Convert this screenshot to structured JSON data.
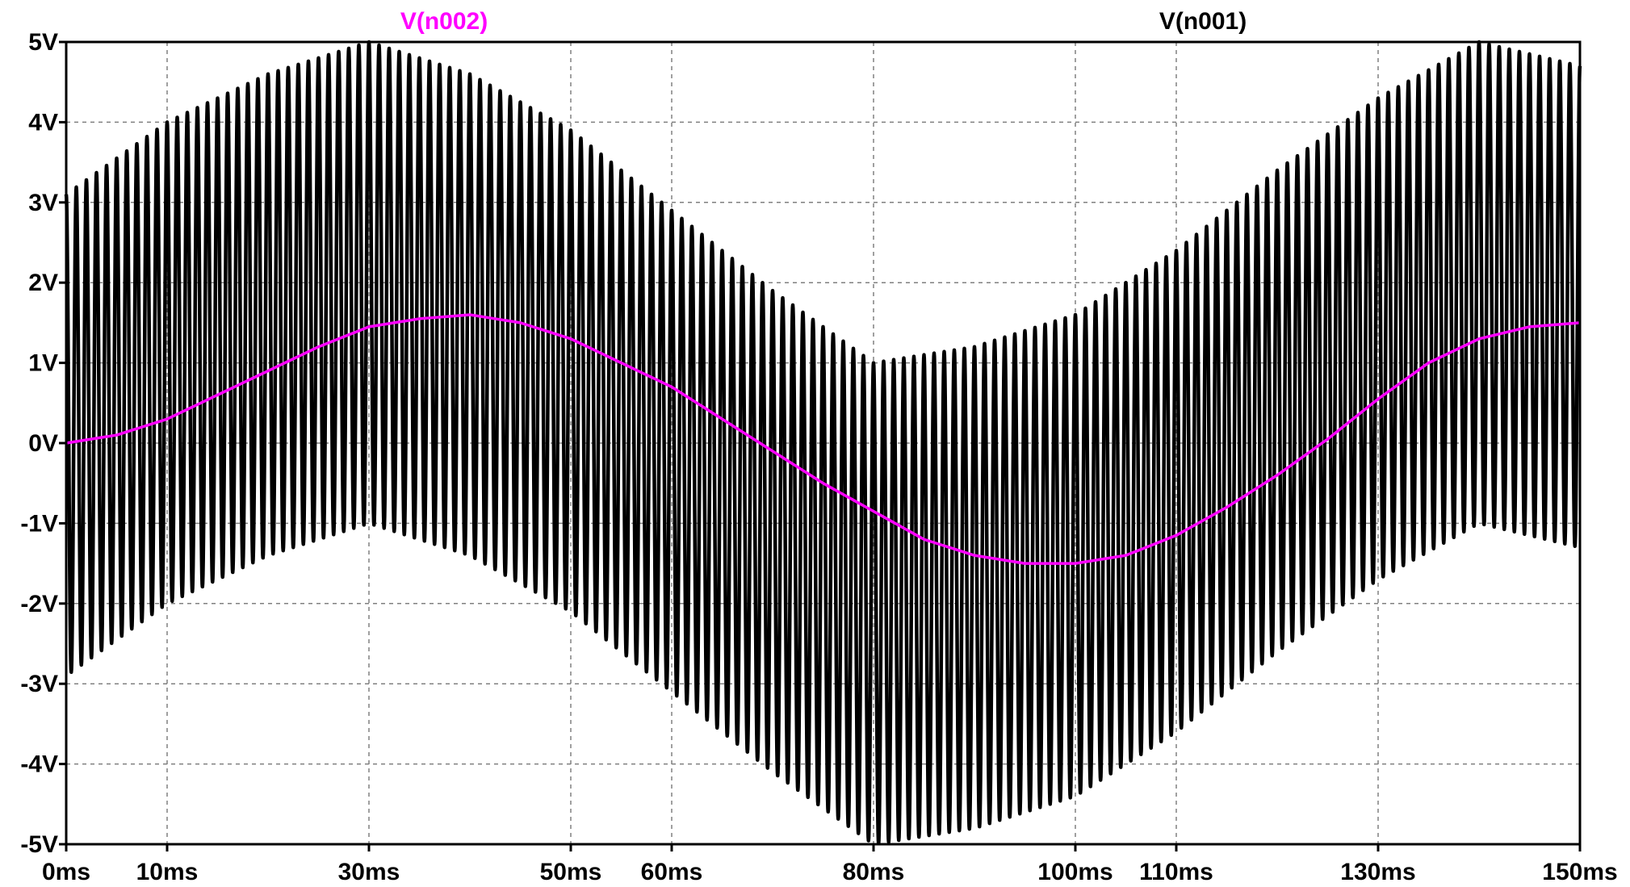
{
  "chart_data": {
    "type": "line",
    "title": "",
    "xlabel": "",
    "ylabel": "",
    "x_unit": "ms",
    "y_unit": "V",
    "xlim": [
      0,
      150
    ],
    "ylim": [
      -5,
      5
    ],
    "grid": true,
    "grid_style": "dashed",
    "legend_placement": "top, labels above plot",
    "x_ticks": [
      0,
      10,
      30,
      50,
      60,
      80,
      100,
      110,
      130,
      150
    ],
    "x_tick_labels": [
      "0ms",
      "10ms",
      "30ms",
      "50ms",
      "60ms",
      "80ms",
      "100ms",
      "110ms",
      "130ms",
      "150ms"
    ],
    "y_ticks": [
      5,
      4,
      3,
      2,
      1,
      0,
      -1,
      -2,
      -3,
      -4,
      -5
    ],
    "y_tick_labels": [
      "5V",
      "4V",
      "3V",
      "2V",
      "1V",
      "0V",
      "-1V",
      "-2V",
      "-3V",
      "-4V",
      "-5V"
    ],
    "series": [
      {
        "name": "V(n001)",
        "color": "#000000",
        "description_shape": "carrier oscillation about slow envelope",
        "envelope_center": {
          "x": [
            0,
            10,
            20,
            30,
            40,
            50,
            60,
            70,
            80,
            90,
            100,
            110,
            120,
            130,
            140,
            150
          ],
          "y": [
            0.1,
            1.0,
            1.6,
            2.0,
            1.6,
            0.9,
            -0.1,
            -1.1,
            -2.0,
            -1.8,
            -1.4,
            -0.6,
            0.4,
            1.3,
            2.0,
            1.7
          ]
        },
        "amplitude": 3.0,
        "oscillations": 150,
        "max": 5.0,
        "min": -5.0
      },
      {
        "name": "V(n002)",
        "color": "#ff00ff",
        "x": [
          0,
          5,
          10,
          15,
          20,
          25,
          30,
          35,
          40,
          45,
          50,
          55,
          60,
          65,
          70,
          75,
          80,
          85,
          90,
          95,
          100,
          105,
          110,
          115,
          120,
          125,
          130,
          135,
          140,
          145,
          150
        ],
        "y": [
          0.0,
          0.1,
          0.3,
          0.6,
          0.9,
          1.2,
          1.45,
          1.55,
          1.6,
          1.5,
          1.3,
          1.0,
          0.7,
          0.3,
          -0.1,
          -0.5,
          -0.85,
          -1.2,
          -1.4,
          -1.5,
          -1.5,
          -1.4,
          -1.15,
          -0.8,
          -0.4,
          0.05,
          0.55,
          1.0,
          1.3,
          1.45,
          1.5
        ]
      }
    ]
  }
}
